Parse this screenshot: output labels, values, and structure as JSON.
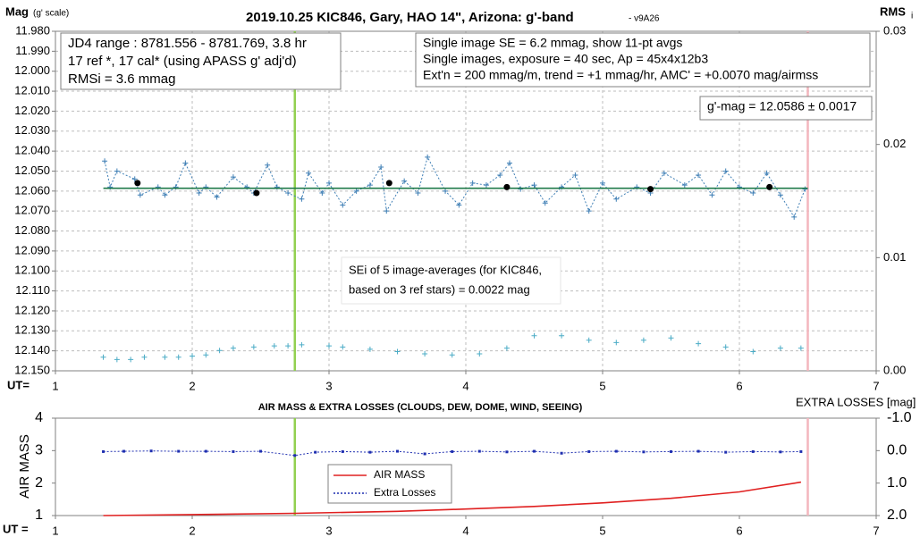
{
  "chart_data": [
    {
      "type": "line",
      "title": "2019.10.25 KIC846, Gary, HAO 14\", Arizona: g'-band",
      "subtitle": "- v9A26",
      "y_label": "Mag",
      "y_label_note": "(g' scale)",
      "y2_label": "RMS",
      "y2_label_sub": "i",
      "x_label": "UT=",
      "xlim": [
        1,
        7
      ],
      "xticks": [
        1,
        2,
        3,
        4,
        5,
        6,
        7
      ],
      "ylim": [
        12.15,
        11.98
      ],
      "yticks": [
        {
          "value": 11.98,
          "label": "11.980"
        },
        {
          "value": 11.99,
          "label": "11.990"
        },
        {
          "value": 12.0,
          "label": "12.000"
        },
        {
          "value": 12.01,
          "label": "12.010"
        },
        {
          "value": 12.02,
          "label": "12.020"
        },
        {
          "value": 12.03,
          "label": "12.030"
        },
        {
          "value": 12.04,
          "label": "12.040"
        },
        {
          "value": 12.05,
          "label": "12.050"
        },
        {
          "value": 12.06,
          "label": "12.060"
        },
        {
          "value": 12.07,
          "label": "12.070"
        },
        {
          "value": 12.08,
          "label": "12.080"
        },
        {
          "value": 12.09,
          "label": "12.090"
        },
        {
          "value": 12.1,
          "label": "12.100"
        },
        {
          "value": 12.11,
          "label": "12.110"
        },
        {
          "value": 12.12,
          "label": "12.120"
        },
        {
          "value": 12.13,
          "label": "12.130"
        },
        {
          "value": 12.14,
          "label": "12.140"
        },
        {
          "value": 12.15,
          "label": "12.150"
        }
      ],
      "y2lim": [
        0,
        0.03
      ],
      "y2ticks": [
        {
          "value": 0,
          "label": "0.00"
        },
        {
          "value": 0.01,
          "label": "0.01"
        },
        {
          "value": 0.02,
          "label": "0.02"
        },
        {
          "value": 0.03,
          "label": "0.03"
        }
      ],
      "grid": true,
      "vlines": [
        {
          "x": 2.75,
          "color": "#92d050"
        },
        {
          "x": 6.5,
          "color": "#f4b6bd"
        }
      ],
      "series": [
        {
          "color": "#3f7fb5",
          "marker": "plus",
          "line": "dashed",
          "x": [
            1.36,
            1.4,
            1.45,
            1.58,
            1.62,
            1.75,
            1.8,
            1.88,
            1.95,
            2.05,
            2.1,
            2.18,
            2.3,
            2.4,
            2.45,
            2.55,
            2.62,
            2.7,
            2.8,
            2.85,
            2.95,
            3.0,
            3.1,
            3.2,
            3.3,
            3.38,
            3.42,
            3.55,
            3.65,
            3.72,
            3.85,
            3.95,
            4.05,
            4.15,
            4.25,
            4.32,
            4.4,
            4.5,
            4.58,
            4.7,
            4.8,
            4.9,
            5.0,
            5.1,
            5.25,
            5.35,
            5.45,
            5.6,
            5.7,
            5.8,
            5.9,
            6.0,
            6.1,
            6.2,
            6.3,
            6.4,
            6.48
          ],
          "values": [
            12.045,
            12.058,
            12.05,
            12.054,
            12.062,
            12.058,
            12.062,
            12.058,
            12.046,
            12.061,
            12.058,
            12.063,
            12.053,
            12.058,
            12.061,
            12.047,
            12.058,
            12.061,
            12.064,
            12.051,
            12.061,
            12.056,
            12.067,
            12.06,
            12.057,
            12.048,
            12.07,
            12.055,
            12.061,
            12.043,
            12.06,
            12.067,
            12.056,
            12.057,
            12.052,
            12.046,
            12.059,
            12.057,
            12.066,
            12.058,
            12.052,
            12.07,
            12.056,
            12.064,
            12.058,
            12.061,
            12.051,
            12.057,
            12.052,
            12.062,
            12.05,
            12.058,
            12.061,
            12.051,
            12.062,
            12.073,
            12.059
          ]
        },
        {
          "color": "#1f7a4a",
          "marker": "none",
          "line": "solid",
          "x": [
            1.35,
            6.5
          ],
          "values": [
            12.0586,
            12.0586
          ]
        },
        {
          "color": "#000000",
          "marker": "dot",
          "line": "none",
          "x": [
            1.6,
            2.47,
            3.44,
            4.3,
            5.35,
            6.22
          ],
          "values": [
            12.056,
            12.061,
            12.056,
            12.058,
            12.059,
            12.058
          ]
        },
        {
          "color": "#4bacc6",
          "marker": "plus",
          "line": "none",
          "axis": "y2",
          "x": [
            1.35,
            1.45,
            1.55,
            1.65,
            1.8,
            1.9,
            2.0,
            2.1,
            2.2,
            2.3,
            2.45,
            2.6,
            2.7,
            2.8,
            3.0,
            3.1,
            3.3,
            3.5,
            3.7,
            3.9,
            4.1,
            4.3,
            4.5,
            4.7,
            4.9,
            5.1,
            5.3,
            5.5,
            5.7,
            5.9,
            6.1,
            6.3,
            6.45
          ],
          "values": [
            0.0012,
            0.001,
            0.001,
            0.0012,
            0.0012,
            0.0012,
            0.0013,
            0.0014,
            0.0018,
            0.002,
            0.0021,
            0.0022,
            0.0022,
            0.0023,
            0.0022,
            0.0021,
            0.0019,
            0.0017,
            0.0015,
            0.0014,
            0.0015,
            0.002,
            0.0031,
            0.0031,
            0.0027,
            0.0025,
            0.0027,
            0.0029,
            0.0024,
            0.0021,
            0.0017,
            0.002,
            0.002
          ]
        }
      ],
      "annotations": [
        {
          "lines": [
            "JD4 range : 8781.556 - 8781.769,  3.8  hr",
            "17 ref *, 17 cal* (using APASS g' adj'd)",
            "RMSi = 3.6 mmag"
          ]
        },
        {
          "lines": [
            "Single image SE = 6.2 mmag, show  11-pt avgs",
            "Single images, exposure = 40 sec, Ap = 45x4x12b3",
            "Ext'n = 200 mmag/m, trend =  +1 mmag/hr, AMC' = +0.0070 mag/airmss"
          ]
        },
        {
          "lines": [
            "g'-mag = 12.0586 ± 0.0017"
          ]
        },
        {
          "lines": [
            "SEi of 5 image-averages (for KIC846,",
            "based on 3 ref stars) = 0.0022 mag"
          ]
        }
      ]
    },
    {
      "type": "line",
      "title": "AIR MASS & EXTRA LOSSES (CLOUDS, DEW, DOME, WIND, SEEING)",
      "y_label": "AIR MASS",
      "y2_label": "EXTRA LOSSES [mag]",
      "x_label": "UT =",
      "xlim": [
        1,
        7
      ],
      "xticks": [
        1,
        2,
        3,
        4,
        5,
        6,
        7
      ],
      "ylim": [
        1,
        4
      ],
      "yticks": [
        1,
        2,
        3,
        4
      ],
      "y2lim": [
        2,
        -1
      ],
      "y2ticks": [
        {
          "value": -1,
          "label": "-1.0"
        },
        {
          "value": 0,
          "label": "0.0"
        },
        {
          "value": 1,
          "label": "1.0"
        },
        {
          "value": 2,
          "label": "2.0"
        }
      ],
      "grid": false,
      "vlines": [
        {
          "x": 2.75,
          "color": "#92d050"
        },
        {
          "x": 6.5,
          "color": "#f4b6bd"
        }
      ],
      "series": [
        {
          "name": "AIR MASS",
          "color": "#e02020",
          "marker": "none",
          "line": "solid",
          "x": [
            1.35,
            2,
            2.75,
            3.5,
            4,
            4.5,
            5,
            5.5,
            6,
            6.45
          ],
          "values": [
            1.0,
            1.03,
            1.07,
            1.13,
            1.2,
            1.28,
            1.39,
            1.53,
            1.73,
            2.03
          ]
        },
        {
          "name": "Extra Losses",
          "color": "#1f2fb0",
          "marker": "small",
          "line": "dashed",
          "axis": "y2",
          "x": [
            1.35,
            1.5,
            1.7,
            1.9,
            2.1,
            2.3,
            2.5,
            2.75,
            2.9,
            3.1,
            3.3,
            3.5,
            3.7,
            3.9,
            4.1,
            4.3,
            4.5,
            4.7,
            4.9,
            5.1,
            5.3,
            5.5,
            5.7,
            5.9,
            6.1,
            6.3,
            6.45
          ],
          "values": [
            0.03,
            0.02,
            0.01,
            0.02,
            0.02,
            0.03,
            0.02,
            0.15,
            0.05,
            0.03,
            0.05,
            0.02,
            0.1,
            0.03,
            0.02,
            0.04,
            0.02,
            0.08,
            0.03,
            0.02,
            0.04,
            0.03,
            0.02,
            0.05,
            0.03,
            0.04,
            0.03
          ]
        }
      ]
    }
  ]
}
